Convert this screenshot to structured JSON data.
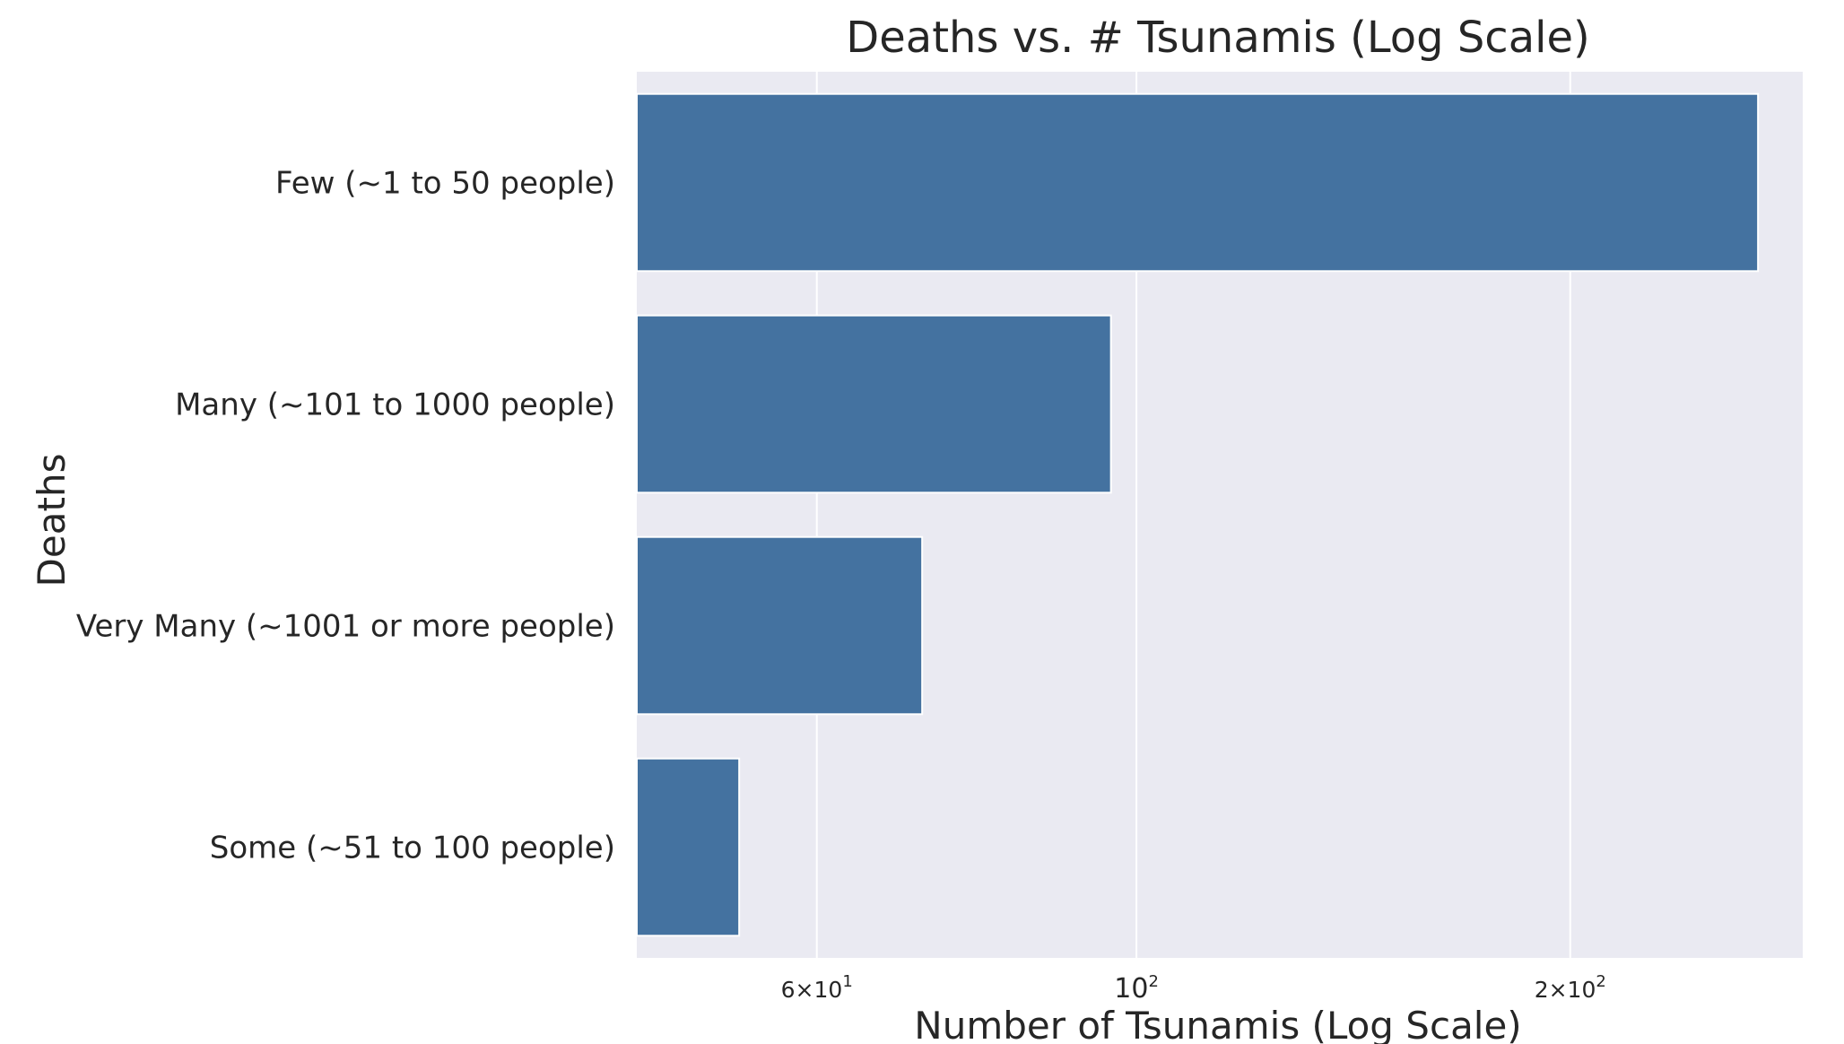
{
  "chart_data": {
    "type": "bar",
    "orientation": "horizontal",
    "title": "Deaths vs. # Tsunamis (Log Scale)",
    "xlabel": "Number of Tsunamis (Log Scale)",
    "ylabel": "Deaths",
    "x_scale": "log",
    "xlim": [
      45,
      290
    ],
    "categories": [
      "Few (~1 to 50 people)",
      "Many (~101 to 1000 people)",
      "Very Many (~1001 or more people)",
      "Some (~51 to 100 people)"
    ],
    "values": [
      270,
      96,
      71,
      53
    ],
    "x_ticks": [
      {
        "value": 60,
        "mantissa": "6",
        "base": "10",
        "exp": "1"
      },
      {
        "value": 100,
        "mantissa": "",
        "base": "10",
        "exp": "2"
      },
      {
        "value": 200,
        "mantissa": "2",
        "base": "10",
        "exp": "2"
      }
    ],
    "grid": true,
    "bar_color": "#4472a0",
    "background_color": "#eaeaf2",
    "grid_color": "#ffffff"
  }
}
